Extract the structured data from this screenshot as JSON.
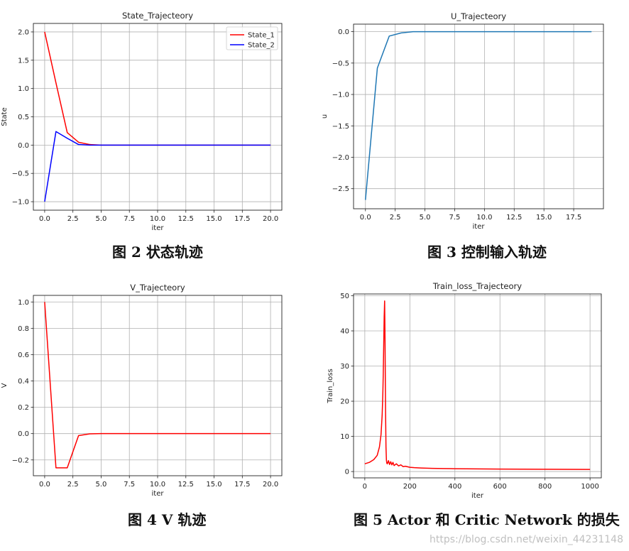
{
  "captions": [
    "图 2  状态轨迹",
    "图 3  控制输入轨迹",
    "图 4 V 轨迹",
    "图 5 Actor 和 Critic Network 的损失"
  ],
  "watermark": "https://blog.csdn.net/weixin_44231148",
  "chart_data": [
    {
      "type": "line",
      "title": "State_Trajecteory",
      "xlabel": "iter",
      "ylabel": "State",
      "xlim": [
        -1,
        21
      ],
      "ylim": [
        -1.15,
        2.15
      ],
      "xticks": [
        0,
        2.5,
        5,
        7.5,
        10,
        12.5,
        15,
        17.5,
        20
      ],
      "xtick_labels": [
        "0.0",
        "2.5",
        "5.0",
        "7.5",
        "10.0",
        "12.5",
        "15.0",
        "17.5",
        "20.0"
      ],
      "yticks": [
        -1,
        -0.5,
        0,
        0.5,
        1,
        1.5,
        2
      ],
      "ytick_labels": [
        "−1.0",
        "−0.5",
        "0.0",
        "0.5",
        "1.0",
        "1.5",
        "2.0"
      ],
      "grid": true,
      "legend": "top-right",
      "series": [
        {
          "name": "State_1",
          "color": "#ff0000",
          "x": [
            0,
            1,
            2,
            3,
            4,
            5,
            6,
            7,
            8,
            9,
            10,
            11,
            12,
            13,
            14,
            15,
            16,
            17,
            18,
            19,
            20
          ],
          "y": [
            2.0,
            1.1,
            0.22,
            0.05,
            0.01,
            0,
            0,
            0,
            0,
            0,
            0,
            0,
            0,
            0,
            0,
            0,
            0,
            0,
            0,
            0,
            0
          ]
        },
        {
          "name": "State_2",
          "color": "#0000ff",
          "x": [
            0,
            1,
            2,
            3,
            4,
            5,
            6,
            7,
            8,
            9,
            10,
            11,
            12,
            13,
            14,
            15,
            16,
            17,
            18,
            19,
            20
          ],
          "y": [
            -1.0,
            0.24,
            0.12,
            0.01,
            0,
            0,
            0,
            0,
            0,
            0,
            0,
            0,
            0,
            0,
            0,
            0,
            0,
            0,
            0,
            0,
            0
          ]
        }
      ]
    },
    {
      "type": "line",
      "title": "U_Trajecteory",
      "xlabel": "iter",
      "ylabel": "u",
      "xlim": [
        -1,
        20
      ],
      "ylim": [
        -2.82,
        0.12
      ],
      "xticks": [
        0,
        2.5,
        5,
        7.5,
        10,
        12.5,
        15,
        17.5
      ],
      "xtick_labels": [
        "0.0",
        "2.5",
        "5.0",
        "7.5",
        "10.0",
        "12.5",
        "15.0",
        "17.5"
      ],
      "yticks": [
        -2.5,
        -2.0,
        -1.5,
        -1.0,
        -0.5,
        0.0
      ],
      "ytick_labels": [
        "−2.5",
        "−2.0",
        "−1.5",
        "−1.0",
        "−0.5",
        "0.0"
      ],
      "grid": true,
      "series": [
        {
          "color": "#1f77b4",
          "x": [
            0,
            1,
            2,
            3,
            4,
            5,
            6,
            7,
            8,
            9,
            10,
            11,
            12,
            13,
            14,
            15,
            16,
            17,
            18,
            19
          ],
          "y": [
            -2.68,
            -0.58,
            -0.07,
            -0.02,
            0,
            0,
            0,
            0,
            0,
            0,
            0,
            0,
            0,
            0,
            0,
            0,
            0,
            0,
            0,
            0
          ]
        }
      ]
    },
    {
      "type": "line",
      "title": "V_Trajecteory",
      "xlabel": "iter",
      "ylabel": "V",
      "xlim": [
        -1,
        21
      ],
      "ylim": [
        -0.32,
        1.05
      ],
      "xticks": [
        0,
        2.5,
        5,
        7.5,
        10,
        12.5,
        15,
        17.5,
        20
      ],
      "xtick_labels": [
        "0.0",
        "2.5",
        "5.0",
        "7.5",
        "10.0",
        "12.5",
        "15.0",
        "17.5",
        "20.0"
      ],
      "yticks": [
        -0.2,
        0,
        0.2,
        0.4,
        0.6,
        0.8,
        1.0
      ],
      "ytick_labels": [
        "−0.2",
        "0.0",
        "0.2",
        "0.4",
        "0.6",
        "0.8",
        "1.0"
      ],
      "grid": true,
      "series": [
        {
          "color": "#ff0000",
          "x": [
            0,
            1,
            2,
            3,
            4,
            5,
            6,
            7,
            8,
            9,
            10,
            11,
            12,
            13,
            14,
            15,
            16,
            17,
            18,
            19,
            20
          ],
          "y": [
            1.0,
            -0.26,
            -0.26,
            -0.015,
            -0.002,
            0,
            0,
            0,
            0,
            0,
            0,
            0,
            0,
            0,
            0,
            0,
            0,
            0,
            0,
            0,
            0
          ]
        }
      ]
    },
    {
      "type": "line",
      "title": "Train_loss_Trajecteory",
      "xlabel": "iter",
      "ylabel": "Train_loss",
      "xlim": [
        -50,
        1050
      ],
      "ylim": [
        -1.8,
        50.5
      ],
      "xticks": [
        0,
        200,
        400,
        600,
        800,
        1000
      ],
      "xtick_labels": [
        "0",
        "200",
        "400",
        "600",
        "800",
        "1000"
      ],
      "yticks": [
        0,
        10,
        20,
        30,
        40,
        50
      ],
      "ytick_labels": [
        "0",
        "10",
        "20",
        "30",
        "40",
        "50"
      ],
      "grid": true,
      "series": [
        {
          "color": "#ff0000",
          "x": [
            0,
            20,
            40,
            55,
            65,
            72,
            77,
            80,
            82,
            84,
            86,
            88,
            90,
            92,
            94,
            96,
            98,
            100,
            105,
            110,
            115,
            120,
            125,
            130,
            140,
            150,
            160,
            170,
            180,
            200,
            220,
            250,
            300,
            350,
            400,
            500,
            600,
            700,
            800,
            900,
            1000
          ],
          "y": [
            2.2,
            2.6,
            3.4,
            4.6,
            7.0,
            10.5,
            16,
            22,
            28,
            36,
            44,
            48.5,
            36,
            18,
            7,
            3.2,
            2.3,
            2.2,
            3.1,
            2.0,
            2.8,
            1.9,
            2.6,
            1.7,
            2.2,
            1.6,
            1.9,
            1.4,
            1.5,
            1.2,
            1.1,
            1.0,
            0.9,
            0.85,
            0.8,
            0.75,
            0.7,
            0.68,
            0.65,
            0.62,
            0.6
          ]
        }
      ]
    }
  ]
}
